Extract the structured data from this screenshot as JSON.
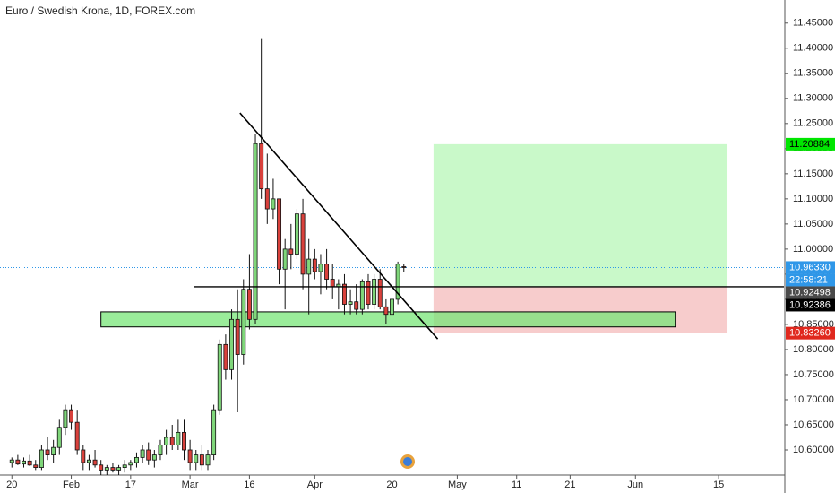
{
  "chart_data": {
    "type": "candlestick",
    "title": "Euro / Swedish Krona, 1D, FOREX.com",
    "up_color": "#7fd67a",
    "down_color": "#d9413c",
    "open": [
      10.575,
      10.58,
      10.572,
      10.578,
      10.57,
      10.565,
      10.6,
      10.59,
      10.605,
      10.645,
      10.68,
      10.655,
      10.6,
      10.575,
      10.58,
      10.57,
      10.56,
      10.565,
      10.56,
      10.565,
      10.57,
      10.575,
      10.585,
      10.6,
      10.58,
      10.59,
      10.61,
      10.625,
      10.61,
      10.635,
      10.6,
      10.575,
      10.59,
      10.57,
      10.59,
      10.68,
      10.81,
      10.76,
      10.86,
      10.79,
      10.92,
      10.86,
      11.21,
      11.12,
      11.08,
      11.1,
      10.96,
      11.0,
      10.99,
      11.07,
      10.95,
      10.98,
      10.955,
      10.97,
      10.94,
      10.925,
      10.93,
      10.89,
      10.895,
      10.88,
      10.935,
      10.89,
      10.94,
      10.885,
      10.87,
      10.9,
      10.965
    ],
    "high": [
      10.585,
      10.59,
      10.585,
      10.59,
      10.58,
      10.61,
      10.625,
      10.62,
      10.66,
      10.69,
      10.69,
      10.68,
      10.61,
      10.59,
      10.6,
      10.58,
      10.57,
      10.575,
      10.57,
      10.58,
      10.58,
      10.595,
      10.61,
      10.615,
      10.6,
      10.62,
      10.64,
      10.65,
      10.66,
      10.66,
      10.62,
      10.6,
      10.61,
      10.6,
      10.69,
      10.82,
      10.83,
      10.88,
      10.92,
      10.94,
      10.99,
      11.23,
      11.42,
      11.19,
      11.14,
      11.1,
      11.02,
      11.05,
      11.08,
      11.1,
      11.02,
      11.0,
      10.99,
      11.0,
      10.97,
      10.94,
      10.95,
      10.92,
      10.93,
      10.94,
      10.95,
      10.95,
      10.96,
      10.9,
      10.91,
      10.975,
      10.97
    ],
    "low": [
      10.565,
      10.57,
      10.565,
      10.568,
      10.56,
      10.56,
      10.58,
      10.575,
      10.59,
      10.63,
      10.64,
      10.59,
      10.56,
      10.56,
      10.565,
      10.55,
      10.55,
      10.555,
      10.55,
      10.555,
      10.56,
      10.565,
      10.575,
      10.57,
      10.565,
      10.58,
      10.59,
      10.6,
      10.6,
      10.58,
      10.56,
      10.56,
      10.56,
      10.56,
      10.58,
      10.67,
      10.74,
      10.74,
      10.675,
      10.77,
      10.84,
      10.85,
      11.1,
      11.05,
      11.06,
      10.93,
      10.88,
      10.96,
      10.98,
      10.92,
      10.87,
      10.94,
      10.91,
      10.92,
      10.9,
      10.88,
      10.87,
      10.87,
      10.87,
      10.87,
      10.88,
      10.88,
      10.88,
      10.85,
      10.86,
      10.89,
      10.955
    ],
    "close": [
      10.58,
      10.572,
      10.578,
      10.57,
      10.565,
      10.6,
      10.59,
      10.605,
      10.645,
      10.68,
      10.655,
      10.6,
      10.575,
      10.58,
      10.57,
      10.56,
      10.565,
      10.56,
      10.565,
      10.57,
      10.575,
      10.585,
      10.6,
      10.58,
      10.59,
      10.61,
      10.625,
      10.61,
      10.635,
      10.6,
      10.575,
      10.59,
      10.57,
      10.59,
      10.68,
      10.81,
      10.76,
      10.86,
      10.79,
      10.92,
      10.86,
      11.21,
      11.12,
      11.08,
      11.1,
      10.96,
      11.0,
      10.99,
      11.07,
      10.95,
      10.98,
      10.955,
      10.97,
      10.94,
      10.925,
      10.93,
      10.89,
      10.895,
      10.88,
      10.935,
      10.89,
      10.94,
      10.885,
      10.87,
      10.9,
      10.97,
      10.9633
    ],
    "xlim": [
      -2,
      130
    ],
    "xticks": [
      {
        "value": 0,
        "label": "20"
      },
      {
        "value": 10,
        "label": "Feb"
      },
      {
        "value": 20,
        "label": "17"
      },
      {
        "value": 30,
        "label": "Mar"
      },
      {
        "value": 40,
        "label": "16"
      },
      {
        "value": 51,
        "label": "Apr"
      },
      {
        "value": 64,
        "label": "20"
      },
      {
        "value": 75,
        "label": "May"
      },
      {
        "value": 85,
        "label": "11"
      },
      {
        "value": 94,
        "label": "21"
      },
      {
        "value": 105,
        "label": "Jun"
      },
      {
        "value": 119,
        "label": "15"
      }
    ],
    "ylim": [
      10.55,
      11.496
    ],
    "yticks": [
      {
        "value": 10.6,
        "label": "10.60000"
      },
      {
        "value": 10.65,
        "label": "10.65000"
      },
      {
        "value": 10.7,
        "label": "10.70000"
      },
      {
        "value": 10.75,
        "label": "10.75000"
      },
      {
        "value": 10.8,
        "label": "10.80000"
      },
      {
        "value": 10.85,
        "label": "10.85000"
      },
      {
        "value": 10.9,
        "label": "10.90000"
      },
      {
        "value": 10.95,
        "label": "10.95000"
      },
      {
        "value": 11.0,
        "label": "11.00000"
      },
      {
        "value": 11.05,
        "label": "11.05000"
      },
      {
        "value": 11.1,
        "label": "11.10000"
      },
      {
        "value": 11.15,
        "label": "11.15000"
      },
      {
        "value": 11.2,
        "label": "11.20000"
      },
      {
        "value": 11.25,
        "label": "11.25000"
      },
      {
        "value": 11.3,
        "label": "11.30000"
      },
      {
        "value": 11.35,
        "label": "11.35000"
      },
      {
        "value": 11.4,
        "label": "11.40000"
      },
      {
        "value": 11.45,
        "label": "11.45000"
      }
    ],
    "price_labels": [
      {
        "value": 11.20884,
        "label": "11.20884",
        "color": "#00e600",
        "text_color": "#000000"
      },
      {
        "value": 10.9633,
        "label": "10.96330",
        "color": "#2f97e8",
        "text_color": "#ffffff"
      },
      {
        "value": 10.9633,
        "label": "22:58:21",
        "color": "#2f97e8",
        "text_color": "#ffffff"
      },
      {
        "value": 10.92498,
        "label": "10.92498",
        "color": "#4a4a4a",
        "text_color": "#ffffff"
      },
      {
        "value": 10.92386,
        "label": "10.92386",
        "color": "#000000",
        "text_color": "#ffffff"
      },
      {
        "value": 10.8326,
        "label": "10.83260",
        "color": "#e0281e",
        "text_color": "#ffffff"
      }
    ],
    "trendline": {
      "x": [
        38.4,
        71.7
      ],
      "y": [
        11.271,
        10.821
      ]
    },
    "hline": {
      "x": 30.7,
      "y": 10.92498
    },
    "zone": {
      "x": [
        15,
        111.7
      ],
      "y": [
        10.845,
        10.875
      ]
    },
    "position": {
      "x": [
        71,
        120.5
      ],
      "entry": 10.92498,
      "target": 11.20884,
      "stop": 10.8326
    }
  }
}
